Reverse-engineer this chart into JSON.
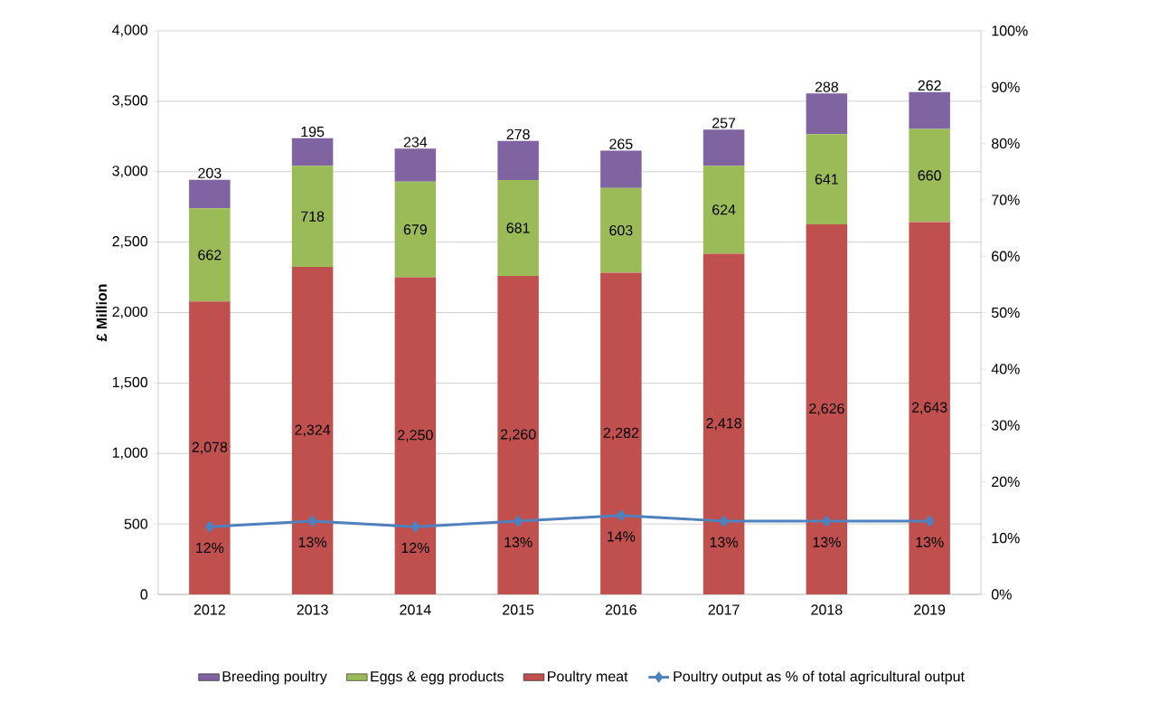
{
  "chart_data": {
    "type": "bar",
    "stacked": true,
    "ylabel": "£ Million",
    "categories": [
      "2012",
      "2013",
      "2014",
      "2015",
      "2016",
      "2017",
      "2018",
      "2019"
    ],
    "series": [
      {
        "name": "Poultry meat",
        "color": "#c0504d",
        "values": [
          2078,
          2324,
          2250,
          2260,
          2282,
          2418,
          2626,
          2643
        ],
        "value_labels": [
          "2,078",
          "2,324",
          "2,250",
          "2,260",
          "2,282",
          "2,418",
          "2,626",
          "2,643"
        ]
      },
      {
        "name": "Eggs & egg products",
        "color": "#9bbb59",
        "values": [
          662,
          718,
          679,
          681,
          603,
          624,
          641,
          660
        ],
        "value_labels": [
          "662",
          "718",
          "679",
          "681",
          "603",
          "624",
          "641",
          "660"
        ]
      },
      {
        "name": "Breeding poultry",
        "color": "#8064a2",
        "values": [
          203,
          195,
          234,
          278,
          265,
          257,
          288,
          262
        ],
        "value_labels": [
          "203",
          "195",
          "234",
          "278",
          "265",
          "257",
          "288",
          "262"
        ]
      },
      {
        "name": "Poultry output as % of total agricultural output",
        "type": "line",
        "axis": "y2",
        "color": "#4f81bd",
        "marker": "diamond",
        "line_style": "solid",
        "values": [
          12,
          13,
          12,
          13,
          14,
          13,
          13,
          13
        ],
        "value_labels": [
          "12%",
          "13%",
          "12%",
          "13%",
          "14%",
          "13%",
          "13%",
          "13%"
        ]
      }
    ],
    "ylim": [
      0,
      4000
    ],
    "yticks": [
      0,
      500,
      {
        "value": 1000,
        "label": "1,000"
      },
      {
        "value": 1500,
        "label": "1,500"
      },
      {
        "value": 2000,
        "label": "2,000"
      },
      {
        "value": 2500,
        "label": "2,500"
      },
      {
        "value": 3000,
        "label": "3,000"
      },
      {
        "value": 3500,
        "label": "3,500"
      },
      {
        "value": 4000,
        "label": "4,000"
      }
    ],
    "y2lim": [
      0,
      100
    ],
    "y2ticks": [
      {
        "value": 0,
        "label": "0%"
      },
      {
        "value": 10,
        "label": "10%"
      },
      {
        "value": 20,
        "label": "20%"
      },
      {
        "value": 30,
        "label": "30%"
      },
      {
        "value": 40,
        "label": "40%"
      },
      {
        "value": 50,
        "label": "50%"
      },
      {
        "value": 60,
        "label": "60%"
      },
      {
        "value": 70,
        "label": "70%"
      },
      {
        "value": 80,
        "label": "80%"
      },
      {
        "value": 90,
        "label": "90%"
      },
      {
        "value": 100,
        "label": "100%"
      }
    ],
    "grid": "y",
    "legend": "bottom"
  }
}
